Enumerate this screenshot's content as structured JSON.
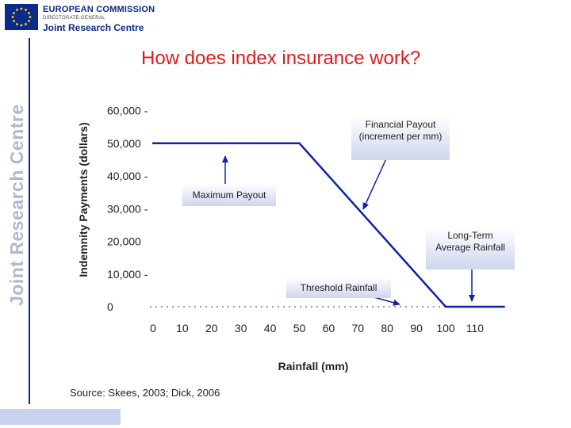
{
  "header": {
    "org_name": "EUROPEAN COMMISSION",
    "org_sub": "DIRECTORATE-GENERAL",
    "org_centre": "Joint Research Centre",
    "side_label": "Joint Research Centre"
  },
  "slide": {
    "title": "How does index insurance work?",
    "source": "Source: Skees, 2003; Dick, 2006"
  },
  "annotations": {
    "financial_payout": "Financial Payout",
    "financial_payout_sub": "(increment per mm)",
    "maximum_payout": "Maximum Payout",
    "long_term_1": "Long-Term",
    "long_term_2": "Average Rainfall",
    "threshold_rainfall": "Threshold Rainfall"
  },
  "colors": {
    "line": "#0d22a8",
    "title": "#e11b1b",
    "brand": "#0b2a8a"
  },
  "chart_data": {
    "type": "line",
    "xlabel": "Rainfall (mm)",
    "ylabel": "Indemnity Payments (dollars)",
    "xlim": [
      0,
      120
    ],
    "ylim": [
      0,
      60000
    ],
    "x_ticks": [
      "0",
      "10",
      "20",
      "30",
      "40",
      "50",
      "60",
      "70",
      "80",
      "90",
      "100",
      "110"
    ],
    "y_ticks": [
      "60,000 -",
      "50,000",
      "40,000 -",
      "30,000 -",
      "20,000",
      "10,000 -",
      "0"
    ],
    "y_tick_values": [
      60000,
      50000,
      40000,
      30000,
      20000,
      10000,
      0
    ],
    "series": [
      {
        "name": "Indemnity payment",
        "x": [
          0,
          50,
          100,
          120
        ],
        "y": [
          50000,
          50000,
          0,
          0
        ]
      }
    ]
  }
}
